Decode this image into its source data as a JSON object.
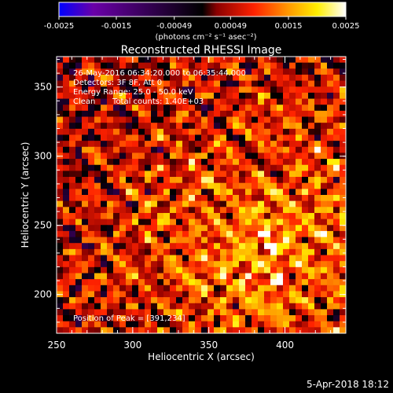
{
  "chart_data": {
    "type": "heatmap",
    "title": "Reconstructed RHESSI Image",
    "xlabel": "Heliocentric X (arcsec)",
    "ylabel": "Heliocentric Y (arcsec)",
    "xlim": [
      250,
      440
    ],
    "ylim": [
      172,
      372
    ],
    "x_ticks": [
      "250",
      "300",
      "350",
      "400"
    ],
    "y_ticks": [
      "200",
      "250",
      "300",
      "350"
    ],
    "colorbar": {
      "range": [
        -0.0025,
        0.0025
      ],
      "ticks": [
        "-0.0025",
        "-0.0015",
        "-0.00049",
        "0.00049",
        "0.0015",
        "0.0025"
      ],
      "label": "(photons cm⁻² s⁻¹ asec⁻²)",
      "colormap": [
        "#0000ff",
        "#6a00a8",
        "#000000",
        "#8b0000",
        "#ff2200",
        "#ff9900",
        "#ffee00",
        "#ffffff"
      ]
    },
    "annotations": [
      "26-May-2016 06:34:20.000 to 06:35:44.000",
      "Detectors: 3F 8F, Att 0",
      "Energy Range: 25.0 - 50.0 keV",
      "Clean",
      "Total counts: 1.40E+03"
    ],
    "peak_label": "Position of Peak = [391,234]",
    "peak": [
      391,
      234
    ]
  },
  "footer": {
    "timestamp": "5-Apr-2018 18:12"
  }
}
